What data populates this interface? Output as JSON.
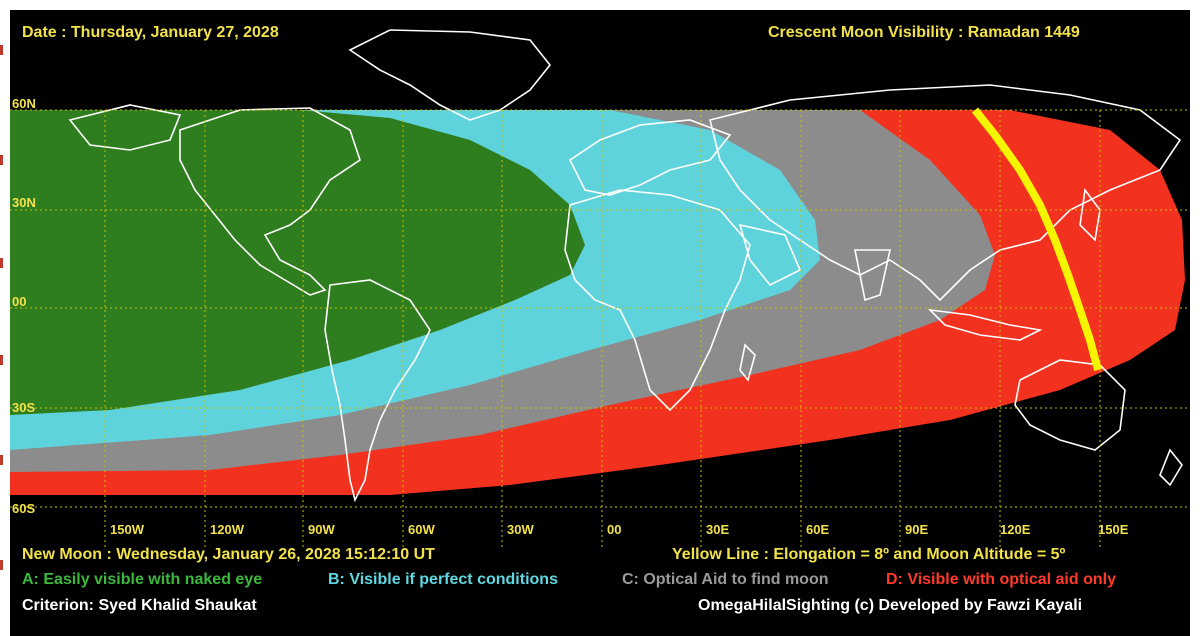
{
  "header": {
    "date": "Date : Thursday, January 27, 2028",
    "title": "Crescent Moon Visibility : Ramadan  1449"
  },
  "map": {
    "lat_labels": [
      "60N",
      "30N",
      "00",
      "30S",
      "60S"
    ],
    "lon_labels": [
      "150W",
      "120W",
      "90W",
      "60W",
      "30W",
      "00",
      "30E",
      "60E",
      "90E",
      "120E",
      "150E"
    ],
    "zones": {
      "A": {
        "color": "#2e7d1f"
      },
      "B": {
        "color": "#5fd3db"
      },
      "C": {
        "color": "#8c8c8c"
      },
      "D": {
        "color": "#f2311f"
      }
    },
    "yellow_line_color": "#f5f500"
  },
  "footer": {
    "new_moon": "New Moon : Wednesday, January 26, 2028  15:12:10  UT",
    "yellow_line": "Yellow Line : Elongation = 8º  and Moon Altitude = 5º",
    "legend": {
      "a": "A: Easily visible with naked eye",
      "b": "B: Visible if perfect conditions",
      "c": "C: Optical Aid to find moon",
      "d": "D: Visible with optical aid only"
    },
    "criterion": "Criterion: Syed Khalid Shaukat",
    "credit": "OmegaHilalSighting  (c)  Developed by Fawzi Kayali"
  }
}
